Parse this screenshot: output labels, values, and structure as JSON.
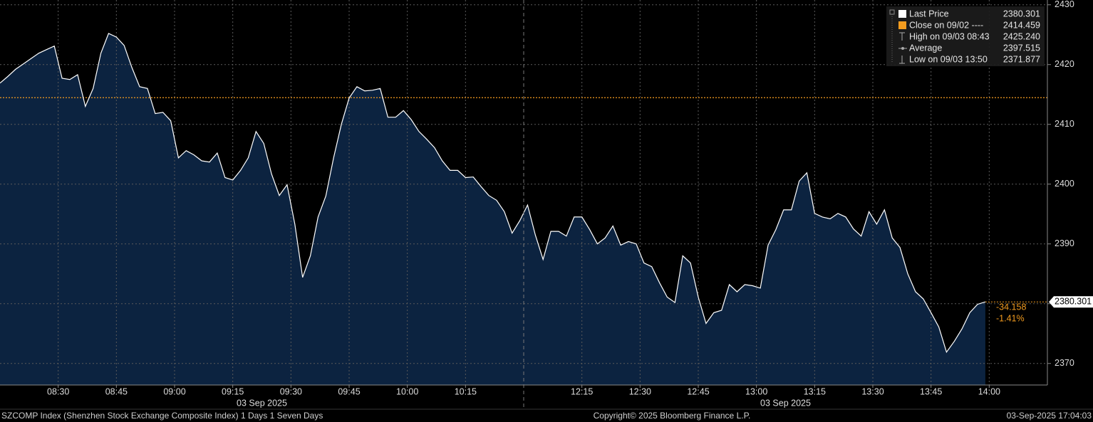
{
  "chart_data": {
    "type": "area",
    "x": [
      "08:15",
      "08:17",
      "08:19",
      "08:21",
      "08:23",
      "08:25",
      "08:27",
      "08:29",
      "08:31",
      "08:33",
      "08:35",
      "08:37",
      "08:39",
      "08:41",
      "08:43",
      "08:45",
      "08:47",
      "08:49",
      "08:51",
      "08:53",
      "08:55",
      "08:57",
      "08:59",
      "09:01",
      "09:03",
      "09:05",
      "09:07",
      "09:09",
      "09:11",
      "09:13",
      "09:15",
      "09:17",
      "09:19",
      "09:21",
      "09:23",
      "09:25",
      "09:27",
      "09:29",
      "09:31",
      "09:33",
      "09:35",
      "09:37",
      "09:39",
      "09:41",
      "09:43",
      "09:45",
      "09:47",
      "09:49",
      "09:51",
      "09:53",
      "09:55",
      "09:57",
      "09:59",
      "10:01",
      "10:03",
      "10:05",
      "10:07",
      "10:09",
      "10:11",
      "10:13",
      "10:15",
      "10:17",
      "10:19",
      "10:21",
      "10:23",
      "10:25",
      "10:27",
      "10:29",
      "12:01",
      "12:03",
      "12:05",
      "12:07",
      "12:09",
      "12:11",
      "12:13",
      "12:15",
      "12:17",
      "12:19",
      "12:21",
      "12:23",
      "12:25",
      "12:27",
      "12:29",
      "12:31",
      "12:33",
      "12:35",
      "12:37",
      "12:39",
      "12:41",
      "12:43",
      "12:45",
      "12:47",
      "12:49",
      "12:51",
      "12:53",
      "12:55",
      "12:57",
      "12:59",
      "13:01",
      "13:03",
      "13:05",
      "13:07",
      "13:09",
      "13:11",
      "13:13",
      "13:15",
      "13:17",
      "13:19",
      "13:21",
      "13:23",
      "13:25",
      "13:27",
      "13:29",
      "13:31",
      "13:33",
      "13:35",
      "13:37",
      "13:39",
      "13:41",
      "13:43",
      "13:45",
      "13:47",
      "13:49",
      "13:51",
      "13:53",
      "13:55",
      "13:57",
      "13:59"
    ],
    "series": [
      {
        "color": "#ffffff",
        "fill": "#0c2340",
        "values": [
          2416.9,
          2418.0,
          2419.2,
          2420.1,
          2421.0,
          2421.9,
          2422.5,
          2423.1,
          2417.7,
          2417.5,
          2418.3,
          2413.0,
          2416.0,
          2421.9,
          2425.2,
          2424.6,
          2423.2,
          2419.5,
          2416.3,
          2416.0,
          2411.8,
          2412.0,
          2410.6,
          2404.4,
          2405.6,
          2404.9,
          2403.9,
          2403.7,
          2405.2,
          2401.1,
          2400.7,
          2402.3,
          2404.4,
          2408.8,
          2406.8,
          2401.7,
          2398.1,
          2399.9,
          2393.3,
          2384.4,
          2388.0,
          2394.5,
          2398.0,
          2404.4,
          2410.0,
          2414.4,
          2416.3,
          2415.6,
          2415.7,
          2416.0,
          2411.2,
          2411.2,
          2412.3,
          2410.8,
          2408.8,
          2407.5,
          2406.1,
          2403.9,
          2402.3,
          2402.3,
          2401.1,
          2401.2,
          2399.6,
          2398.1,
          2397.3,
          2395.4,
          2391.8,
          2393.9,
          2396.5,
          2391.5,
          2387.4,
          2392.1,
          2392.1,
          2391.3,
          2394.5,
          2394.5,
          2392.4,
          2390.0,
          2391.0,
          2393.0,
          2389.8,
          2390.4,
          2390.0,
          2386.8,
          2386.2,
          2383.5,
          2381.1,
          2380.2,
          2388.0,
          2386.8,
          2381.1,
          2376.7,
          2378.5,
          2378.9,
          2383.2,
          2382.0,
          2383.2,
          2383.0,
          2382.6,
          2389.8,
          2392.4,
          2395.7,
          2395.7,
          2400.5,
          2401.9,
          2395.1,
          2394.5,
          2394.2,
          2395.1,
          2394.5,
          2392.5,
          2391.3,
          2395.4,
          2393.3,
          2395.7,
          2391.0,
          2389.4,
          2385.0,
          2382.0,
          2380.8,
          2378.5,
          2376.1,
          2371.9,
          2373.7,
          2375.8,
          2378.5,
          2379.9,
          2380.301
        ]
      }
    ],
    "sessions": [
      [
        "08:15",
        "10:30"
      ],
      [
        "12:00",
        "14:15"
      ]
    ],
    "xticks": [
      "08:30",
      "08:45",
      "09:00",
      "09:15",
      "09:30",
      "09:45",
      "10:00",
      "10:15",
      "12:15",
      "12:30",
      "12:45",
      "13:00",
      "13:15",
      "13:30",
      "13:45",
      "14:00"
    ],
    "x_group_labels": [
      "03 Sep 2025",
      "03 Sep 2025"
    ],
    "ylim": [
      2366.4,
      2430.8
    ],
    "yticks": [
      2370,
      2380,
      2390,
      2400,
      2410,
      2420,
      2430
    ],
    "grid": true,
    "reference_line_color": "#f39c1f",
    "legend": [
      {
        "label": "Last Price",
        "value": 2380.301
      },
      {
        "label": "Close on 09/02 ----",
        "value": 2414.459
      },
      {
        "label": "High on 09/03 08:43",
        "value": {
          "value": 2425.24,
          "label": "2425.240"
        }
      },
      {
        "label": "Average",
        "value": 2397.515
      },
      {
        "label": "Low on 09/03 13:50",
        "value": 2371.877
      }
    ],
    "change": -34.158,
    "change_pct": {
      "value": -1.41,
      "label": "-1.41%"
    },
    "footer": {
      "left": "SZCOMP Index (Shenzhen Stock Exchange Composite Index) 1 Days 1 Seven Days",
      "center": "Copyright© 2025 Bloomberg Finance L.P.",
      "right": "03-Sep-2025 17:04:03"
    }
  }
}
